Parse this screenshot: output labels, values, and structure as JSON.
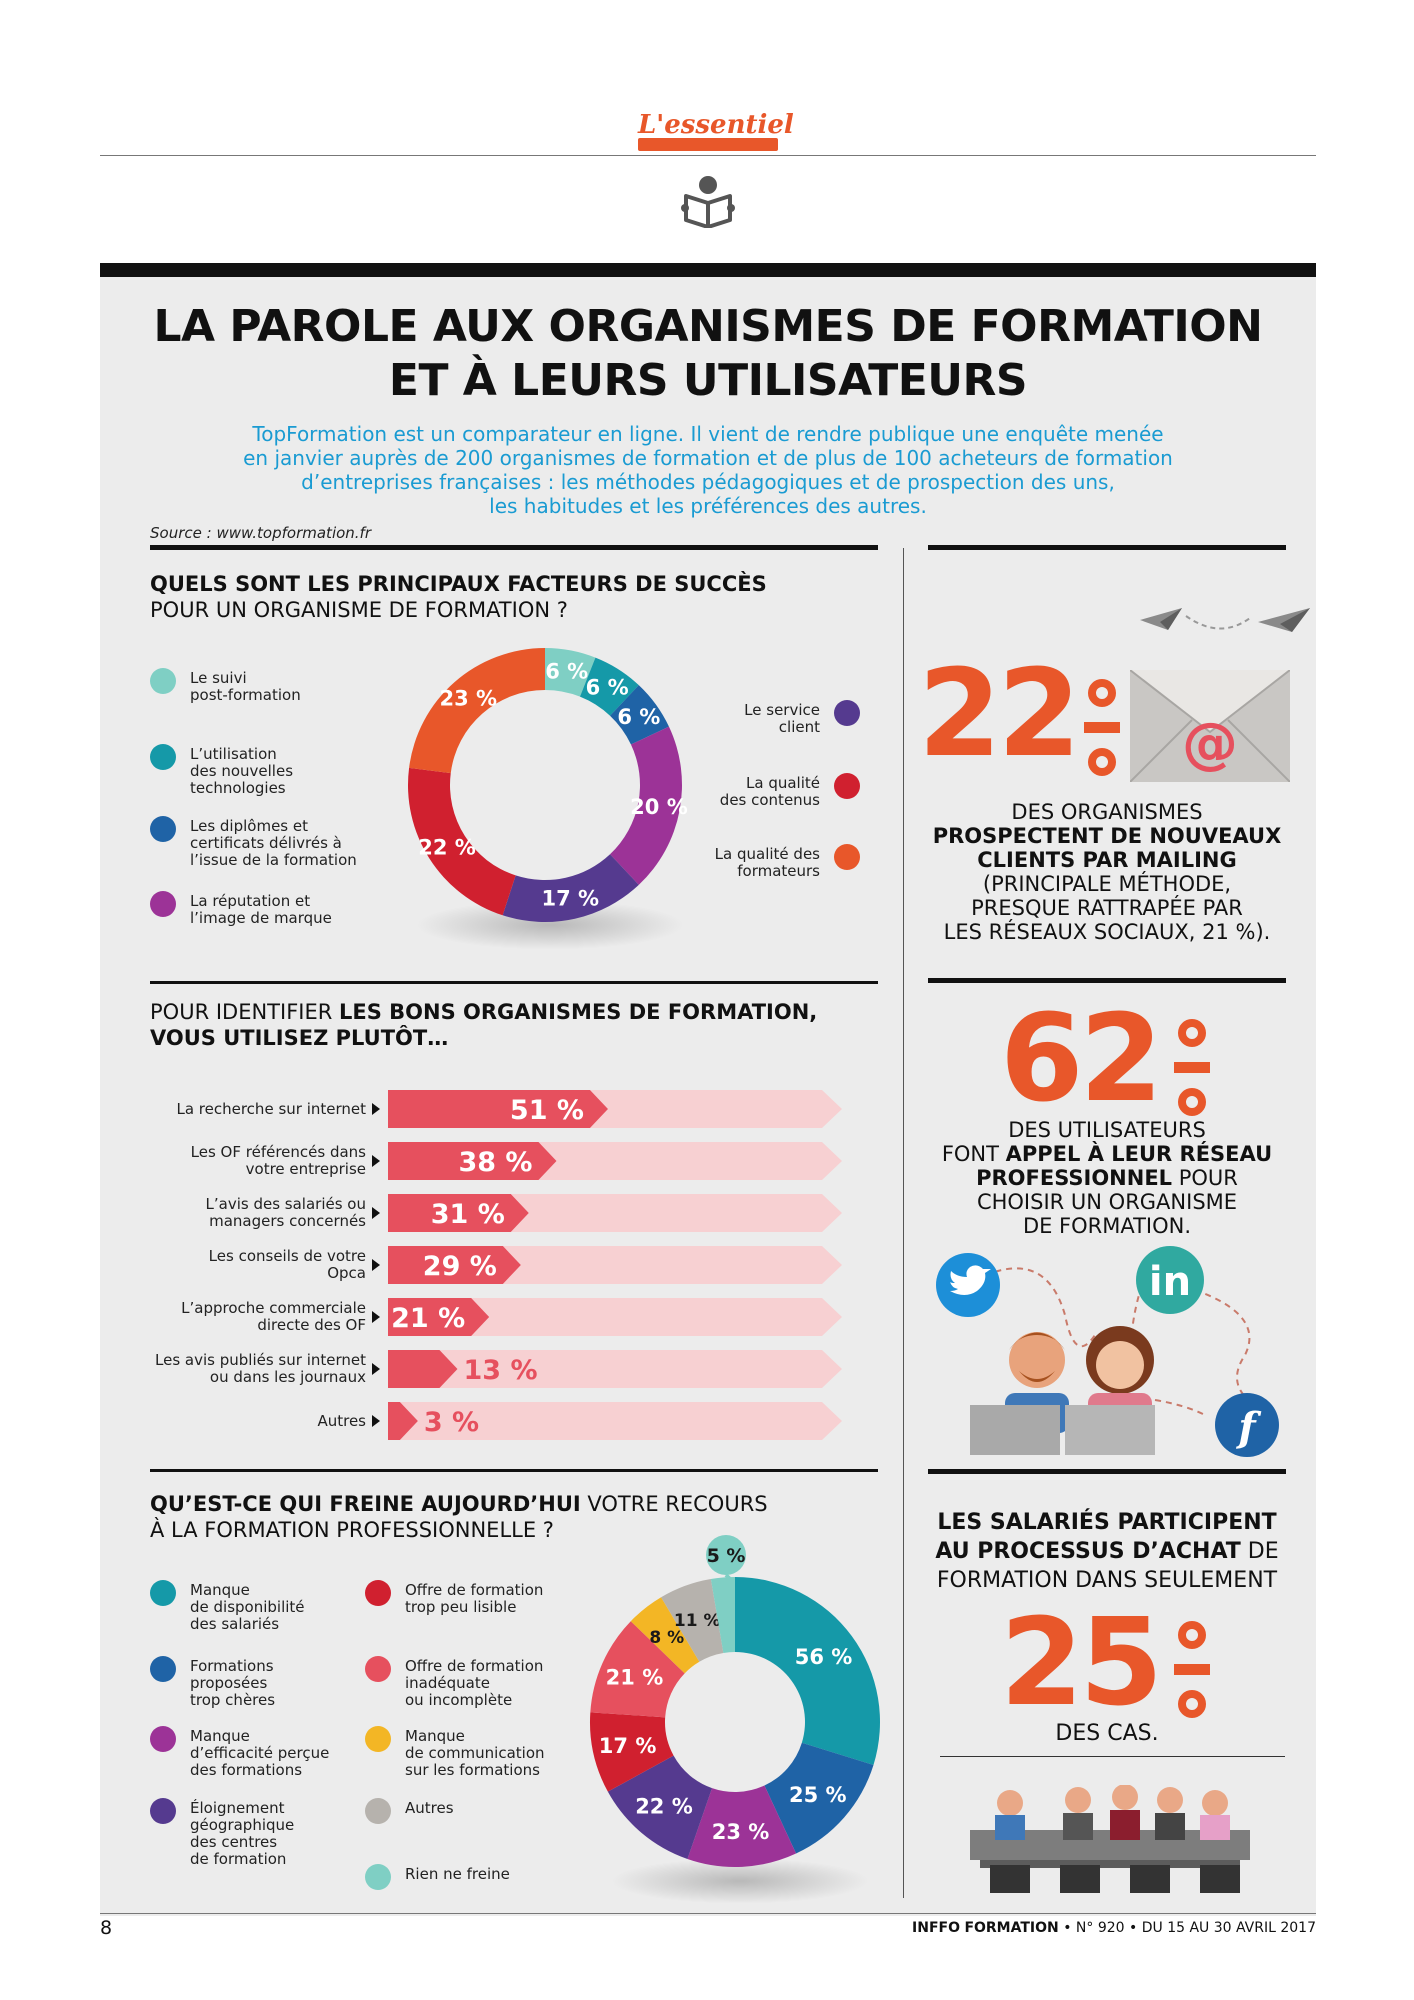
{
  "header": {
    "section_label": "L'essentiel"
  },
  "title": {
    "line1": "LA PAROLE AUX ORGANISMES DE FORMATION",
    "line2": "ET À LEURS UTILISATEURS"
  },
  "intro": {
    "line1": "TopFormation est un comparateur en ligne. Il vient de rendre publique une enquête menée",
    "line2": "en janvier auprès de 200 organismes de formation et de plus de 100 acheteurs de formation",
    "line3": "d’entreprises françaises : les méthodes pédagogiques et de prospection des uns,",
    "line4": "les habitudes et les préférences des autres."
  },
  "source": "Source : www.topformation.fr",
  "colors": {
    "orange": "#e8572a",
    "red": "#d0202f",
    "purple": "#9c3397",
    "indigo": "#553a8f",
    "navy": "#1f63a6",
    "teal": "#1599a8",
    "mint": "#7fcfc4",
    "coral": "#e6505e",
    "yellow": "#f3b625",
    "grey": "#b6b2ad",
    "bar": "#e6505e",
    "bar_track": "#f7d0d2",
    "blue_text": "#1a9bd2"
  },
  "section1": {
    "title_bold": "QUELS SONT LES PRINCIPAUX FACTEURS DE SUCCÈS",
    "title_rest": "POUR UN ORGANISME DE FORMATION ?"
  },
  "section2": {
    "title_start": "POUR IDENTIFIER ",
    "title_bold": "LES BONS ORGANISMES DE FORMATION,",
    "title_line2": "VOUS UTILISEZ PLUTÔT…"
  },
  "section3": {
    "title_bold": "QU’EST-CE QUI FREINE AUJOURD’HUI",
    "title_rest": " VOTRE RECOURS",
    "title_line2": "À LA FORMATION PROFESSIONNELLE ?"
  },
  "chart_data": [
    {
      "type": "pie",
      "title": "QUELS SONT LES PRINCIPAUX FACTEURS DE SUCCÈS POUR UN ORGANISME DE FORMATION ?",
      "unit": "%",
      "series": [
        {
          "name": "Le suivi post-formation",
          "value": 6,
          "color": "#7fcfc4"
        },
        {
          "name": "L’utilisation des nouvelles technologies",
          "value": 6,
          "color": "#1599a8"
        },
        {
          "name": "Les diplômes et certificats délivrés à l’issue de la formation",
          "value": 6,
          "color": "#1f63a6"
        },
        {
          "name": "La réputation et l’image de marque",
          "value": 20,
          "color": "#9c3397"
        },
        {
          "name": "Le service client",
          "value": 17,
          "color": "#553a8f"
        },
        {
          "name": "La qualité des contenus",
          "value": 22,
          "color": "#d0202f"
        },
        {
          "name": "La qualité des formateurs",
          "value": 23,
          "color": "#e8572a"
        }
      ]
    },
    {
      "type": "bar",
      "orientation": "horizontal",
      "title": "POUR IDENTIFIER LES BONS ORGANISMES DE FORMATION, VOUS UTILISEZ PLUTÔT…",
      "unit": "%",
      "xlim": [
        0,
        100
      ],
      "categories": [
        "La recherche sur internet",
        "Les OF référencés dans votre entreprise",
        "L’avis des salariés ou managers concernés",
        "Les conseils de votre Opca",
        "L’approche commerciale directe des OF",
        "Les avis publiés sur internet ou dans les journaux",
        "Autres"
      ],
      "category_lines": [
        [
          "La recherche sur internet"
        ],
        [
          "Les OF référencés dans",
          "votre entreprise"
        ],
        [
          "L’avis des salariés ou",
          "managers concernés"
        ],
        [
          "Les conseils de votre",
          "Opca"
        ],
        [
          "L’approche commerciale",
          "directe des OF"
        ],
        [
          "Les avis publiés sur internet",
          "ou dans les journaux"
        ],
        [
          "Autres"
        ]
      ],
      "values": [
        51,
        38,
        31,
        29,
        21,
        13,
        3
      ]
    },
    {
      "type": "pie",
      "title": "QU’EST-CE QUI FREINE AUJOURD’HUI VOTRE RECOURS À LA FORMATION PROFESSIONNELLE ?",
      "unit": "%",
      "series": [
        {
          "name": "Manque de disponibilité des salariés",
          "value": 56,
          "color": "#1599a8"
        },
        {
          "name": "Formations proposées trop chères",
          "value": 25,
          "color": "#1f63a6"
        },
        {
          "name": "Manque d’efficacité perçue des formations",
          "value": 23,
          "color": "#9c3397"
        },
        {
          "name": "Éloignement géographique des centres de formation",
          "value": 22,
          "color": "#553a8f"
        },
        {
          "name": "Offre de formation trop peu lisible",
          "value": 17,
          "color": "#d0202f"
        },
        {
          "name": "Offre de formation inadéquate ou incomplète",
          "value": 21,
          "color": "#e6505e"
        },
        {
          "name": "Manque de communication sur les formations",
          "value": 8,
          "color": "#f3b625"
        },
        {
          "name": "Autres",
          "value": 11,
          "color": "#b6b2ad"
        },
        {
          "name": "Rien ne freine",
          "value": 5,
          "color": "#7fcfc4"
        }
      ]
    }
  ],
  "legend1": [
    {
      "lines": [
        "Le suivi",
        "post-formation"
      ],
      "color": "#7fcfc4"
    },
    {
      "lines": [
        "L’utilisation",
        "des nouvelles",
        "technologies"
      ],
      "color": "#1599a8"
    },
    {
      "lines": [
        "Les diplômes et",
        "certificats délivrés à",
        "l’issue de la formation"
      ],
      "color": "#1f63a6"
    },
    {
      "lines": [
        "La réputation et",
        "l’image de marque"
      ],
      "color": "#9c3397"
    }
  ],
  "legend1_right": [
    {
      "lines": [
        "Le service",
        "client"
      ],
      "color": "#553a8f"
    },
    {
      "lines": [
        "La qualité",
        "des contenus"
      ],
      "color": "#d0202f"
    },
    {
      "lines": [
        "La qualité des",
        "formateurs"
      ],
      "color": "#e8572a"
    }
  ],
  "legend3_left": [
    {
      "lines": [
        "Manque",
        "de disponibilité",
        "des salariés"
      ],
      "color": "#1599a8"
    },
    {
      "lines": [
        "Formations",
        "proposées",
        "trop chères"
      ],
      "color": "#1f63a6"
    },
    {
      "lines": [
        "Manque",
        "d’efficacité perçue",
        "des formations"
      ],
      "color": "#9c3397"
    },
    {
      "lines": [
        "Éloignement",
        "géographique",
        "des centres",
        "de formation"
      ],
      "color": "#553a8f"
    }
  ],
  "legend3_right": [
    {
      "lines": [
        "Offre de formation",
        "trop peu lisible"
      ],
      "color": "#d0202f"
    },
    {
      "lines": [
        "Offre de formation",
        "inadéquate",
        "ou incomplète"
      ],
      "color": "#e6505e"
    },
    {
      "lines": [
        "Manque",
        "de communication",
        "sur les formations"
      ],
      "color": "#f3b625"
    },
    {
      "lines": [
        "Autres"
      ],
      "color": "#b6b2ad"
    },
    {
      "lines": [
        "Rien ne freine"
      ],
      "color": "#7fcfc4"
    }
  ],
  "stat1": {
    "value": "22",
    "line1": "DES ORGANISMES",
    "bold1": "PROSPECTENT DE NOUVEAUX",
    "bold2": "CLIENTS PAR MAILING",
    "line2": "(PRINCIPALE MÉTHODE,",
    "line3": "PRESQUE RATTRAPÉE PAR",
    "line4": "LES RÉSEAUX SOCIAUX, 21 %)."
  },
  "stat2": {
    "value": "62",
    "line1": "DES UTILISATEURS",
    "line2_start": "FONT ",
    "bold1": "APPEL À LEUR RÉSEAU",
    "bold2": "PROFESSIONNEL",
    "line3_rest": " POUR",
    "line4": "CHOISIR UN ORGANISME",
    "line5": "DE FORMATION."
  },
  "stat3": {
    "bold1": "LES SALARIÉS PARTICIPENT",
    "bold2": "AU PROCESSUS D’ACHAT",
    "rest2": " DE",
    "line3": "FORMATION DANS SEULEMENT",
    "value": "25",
    "line4": "DES CAS."
  },
  "icons": {
    "reader": "reader-icon",
    "mail": "envelope-icon",
    "at": "@",
    "twitter": "twitter-icon",
    "linkedin": "in",
    "facebook": "f"
  },
  "footer": {
    "page": "8",
    "brand1": "INFFO",
    "brand2": "FORMATION",
    "issue": " • N° 920 • DU 15 AU 30 AVRIL 2017"
  }
}
